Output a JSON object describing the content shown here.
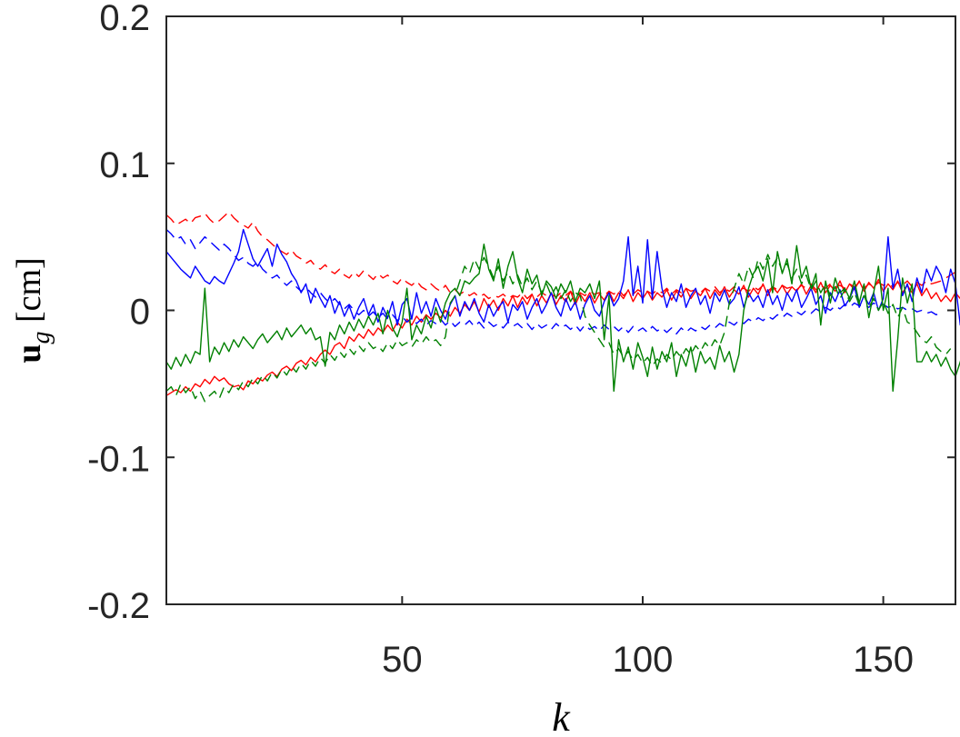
{
  "chart_data": {
    "type": "line",
    "xlabel": "k",
    "ylabel": "u_g [cm]",
    "xlim": [
      1,
      165
    ],
    "ylim": [
      -0.2,
      0.2
    ],
    "xticks": [
      50,
      100,
      150
    ],
    "yticks": [
      -0.2,
      -0.1,
      0,
      0.1,
      0.2
    ],
    "xtick_labels": [
      "50",
      "100",
      "150"
    ],
    "ytick_labels": [
      "-0.2",
      "-0.1",
      "0",
      "0.1",
      "0.2"
    ],
    "grid": false,
    "series": [
      {
        "color": "#ff0000",
        "dash": "solid",
        "values": [
          -0.058,
          -0.056,
          -0.054,
          -0.056,
          -0.052,
          -0.055,
          -0.05,
          -0.052,
          -0.047,
          -0.05,
          -0.045,
          -0.048,
          -0.046,
          -0.05,
          -0.052,
          -0.051,
          -0.054,
          -0.048,
          -0.05,
          -0.046,
          -0.048,
          -0.044,
          -0.042,
          -0.045,
          -0.04,
          -0.038,
          -0.041,
          -0.036,
          -0.034,
          -0.037,
          -0.032,
          -0.035,
          -0.03,
          -0.027,
          -0.03,
          -0.024,
          -0.022,
          -0.026,
          -0.018,
          -0.021,
          -0.016,
          -0.019,
          -0.013,
          -0.017,
          -0.012,
          -0.015,
          -0.01,
          -0.014,
          -0.008,
          -0.012,
          -0.006,
          -0.01,
          -0.004,
          -0.008,
          -0.003,
          -0.006,
          -0.002,
          -0.005,
          0.0,
          -0.004,
          0.002,
          -0.002,
          0.004,
          0.0,
          0.006,
          -0.001,
          0.008,
          0.002,
          0.007,
          0.0,
          0.008,
          0.003,
          0.01,
          0.002,
          0.009,
          0.004,
          0.011,
          0.003,
          0.01,
          0.005,
          0.012,
          0.004,
          0.01,
          0.006,
          0.013,
          0.004,
          0.011,
          0.006,
          0.012,
          0.005,
          0.011,
          0.007,
          0.013,
          0.006,
          0.012,
          0.008,
          0.014,
          0.006,
          0.012,
          0.008,
          0.013,
          0.007,
          0.012,
          0.009,
          0.014,
          0.007,
          0.013,
          0.009,
          0.015,
          0.008,
          0.013,
          0.01,
          0.015,
          0.008,
          0.014,
          0.01,
          0.016,
          0.009,
          0.014,
          0.011,
          0.017,
          0.009,
          0.015,
          0.011,
          0.018,
          0.01,
          0.016,
          0.012,
          0.017,
          0.011,
          0.016,
          0.013,
          0.018,
          0.011,
          0.017,
          0.012,
          0.019,
          0.012,
          0.017,
          0.013,
          0.02,
          0.012,
          0.018,
          0.014,
          0.02,
          0.013,
          0.019,
          0.015,
          0.021,
          0.013,
          0.018,
          0.014,
          0.02,
          0.012,
          0.017,
          0.012,
          0.018,
          0.01,
          0.015,
          0.008,
          0.012,
          0.006,
          0.01,
          0.006,
          0.012,
          0.008,
          0.014,
          0.025,
          0.022
        ]
      },
      {
        "color": "#ff0000",
        "dash": "dashed",
        "values": [
          0.065,
          0.062,
          0.058,
          0.06,
          0.062,
          0.059,
          0.063,
          0.064,
          0.066,
          0.062,
          0.059,
          0.061,
          0.064,
          0.067,
          0.063,
          0.06,
          0.058,
          0.056,
          0.06,
          0.054,
          0.05,
          0.048,
          0.045,
          0.042,
          0.04,
          0.038,
          0.041,
          0.037,
          0.035,
          0.032,
          0.034,
          0.03,
          0.028,
          0.031,
          0.027,
          0.025,
          0.028,
          0.024,
          0.022,
          0.026,
          0.023,
          0.027,
          0.024,
          0.021,
          0.025,
          0.022,
          0.024,
          0.02,
          0.018,
          0.022,
          0.019,
          0.017,
          0.02,
          0.016,
          0.014,
          0.018,
          0.015,
          0.013,
          0.017,
          0.012,
          0.014,
          0.011,
          0.013,
          0.01,
          0.012,
          0.009,
          0.011,
          0.008,
          0.01,
          0.009,
          0.011,
          0.008,
          0.01,
          0.009,
          0.012,
          0.008,
          0.011,
          0.009,
          0.012,
          0.01,
          0.011,
          0.009,
          0.012,
          0.01,
          0.013,
          0.009,
          0.012,
          0.01,
          0.013,
          0.011,
          0.012,
          0.01,
          0.013,
          0.011,
          0.014,
          0.01,
          0.013,
          0.011,
          0.014,
          0.012,
          0.013,
          0.011,
          0.014,
          0.012,
          0.015,
          0.011,
          0.014,
          0.012,
          0.015,
          0.013,
          0.014,
          0.012,
          0.015,
          0.013,
          0.016,
          0.012,
          0.015,
          0.013,
          0.016,
          0.014,
          0.015,
          0.013,
          0.016,
          0.014,
          0.017,
          0.013,
          0.016,
          0.014,
          0.017,
          0.015,
          0.016,
          0.014,
          0.017,
          0.015,
          0.018,
          0.014,
          0.017,
          0.015,
          0.018,
          0.016,
          0.017,
          0.015,
          0.018,
          0.016,
          0.019,
          0.015,
          0.018,
          0.016,
          0.019,
          0.017,
          0.018,
          0.016,
          0.019,
          0.017,
          0.02,
          0.016,
          0.019,
          0.017,
          0.02,
          0.018,
          0.019,
          0.02,
          0.022,
          0.024,
          0.026
        ]
      },
      {
        "color": "#0000ff",
        "dash": "solid",
        "values": [
          0.04,
          0.036,
          0.032,
          0.028,
          0.025,
          0.022,
          0.03,
          0.025,
          0.02,
          0.018,
          0.023,
          0.02,
          0.018,
          0.025,
          0.032,
          0.04,
          0.055,
          0.045,
          0.035,
          0.03,
          0.036,
          0.042,
          0.03,
          0.045,
          0.038,
          0.033,
          0.025,
          0.02,
          0.012,
          0.018,
          0.005,
          0.015,
          0.008,
          0.002,
          0.01,
          -0.002,
          0.006,
          -0.004,
          0.003,
          -0.006,
          0.002,
          0.008,
          -0.003,
          0.004,
          -0.008,
          0.002,
          -0.005,
          0.006,
          -0.01,
          0.004,
          0.008,
          -0.006,
          0.012,
          -0.002,
          0.006,
          -0.004,
          0.008,
          0.0,
          -0.006,
          0.004,
          0.01,
          -0.004,
          0.006,
          0.0,
          0.008,
          -0.002,
          -0.008,
          0.004,
          -0.004,
          0.002,
          0.006,
          -0.008,
          0.004,
          0.0,
          0.006,
          -0.006,
          0.002,
          0.008,
          -0.002,
          0.004,
          0.012,
          0.002,
          -0.004,
          0.008,
          0.0,
          0.006,
          -0.006,
          0.004,
          0.01,
          0.0,
          -0.004,
          0.006,
          0.012,
          0.003,
          0.008,
          0.02,
          0.05,
          0.01,
          0.03,
          0.005,
          0.048,
          0.008,
          0.04,
          0.015,
          0.002,
          0.012,
          0.006,
          0.018,
          0.002,
          0.01,
          0.015,
          0.004,
          0.01,
          -0.002,
          0.012,
          0.006,
          0.014,
          0.004,
          0.008,
          0.016,
          0.002,
          0.012,
          0.006,
          0.01,
          0.002,
          0.014,
          0.004,
          0.01,
          0.0,
          0.012,
          0.006,
          0.014,
          0.002,
          0.008,
          0.015,
          0.004,
          0.01,
          -0.002,
          0.012,
          0.006,
          0.014,
          0.003,
          0.008,
          0.016,
          0.002,
          0.01,
          0.004,
          0.012,
          0.0,
          0.008,
          0.05,
          0.015,
          0.028,
          0.01,
          0.018,
          0.006,
          0.022,
          0.012,
          0.028,
          0.02,
          0.03,
          0.024,
          0.012,
          0.028,
          0.018,
          -0.01,
          -0.012
        ]
      },
      {
        "color": "#0000ff",
        "dash": "dashed",
        "values": [
          0.055,
          0.052,
          0.048,
          0.05,
          0.045,
          0.048,
          0.042,
          0.046,
          0.05,
          0.047,
          0.044,
          0.041,
          0.045,
          0.042,
          0.038,
          0.034,
          0.036,
          0.032,
          0.03,
          0.033,
          0.028,
          0.025,
          0.022,
          0.024,
          0.02,
          0.017,
          0.02,
          0.016,
          0.013,
          0.016,
          0.012,
          0.009,
          0.012,
          0.008,
          0.005,
          0.008,
          0.004,
          0.001,
          0.004,
          0.0,
          -0.003,
          0.0,
          -0.004,
          -0.001,
          -0.005,
          -0.002,
          -0.006,
          -0.003,
          -0.007,
          -0.004,
          -0.008,
          -0.005,
          -0.009,
          -0.006,
          -0.01,
          -0.007,
          -0.009,
          -0.006,
          -0.01,
          -0.007,
          -0.011,
          -0.008,
          -0.01,
          -0.007,
          -0.011,
          -0.008,
          -0.012,
          -0.008,
          -0.011,
          -0.009,
          -0.012,
          -0.008,
          -0.011,
          -0.009,
          -0.012,
          -0.009,
          -0.013,
          -0.009,
          -0.012,
          -0.01,
          -0.013,
          -0.009,
          -0.012,
          -0.01,
          -0.013,
          -0.01,
          -0.014,
          -0.01,
          -0.013,
          -0.011,
          -0.014,
          -0.01,
          -0.013,
          -0.011,
          -0.014,
          -0.011,
          -0.015,
          -0.011,
          -0.014,
          -0.012,
          -0.015,
          -0.011,
          -0.014,
          -0.012,
          -0.015,
          -0.012,
          -0.016,
          -0.012,
          -0.015,
          -0.012,
          -0.014,
          -0.011,
          -0.013,
          -0.01,
          -0.012,
          -0.009,
          -0.011,
          -0.008,
          -0.01,
          -0.007,
          -0.009,
          -0.006,
          -0.008,
          -0.005,
          -0.007,
          -0.004,
          -0.006,
          -0.003,
          -0.005,
          -0.002,
          -0.004,
          -0.001,
          -0.003,
          0.0,
          -0.002,
          0.001,
          -0.001,
          0.002,
          0.0,
          0.003,
          0.001,
          0.004,
          0.002,
          0.005,
          0.003,
          0.004,
          0.002,
          0.005,
          0.003,
          0.004,
          0.002,
          0.003,
          0.001,
          0.002,
          0.0,
          0.001,
          -0.001,
          0.0,
          -0.002,
          -0.001,
          -0.003,
          -0.002
        ]
      },
      {
        "color": "#008000",
        "dash": "solid",
        "values": [
          -0.035,
          -0.04,
          -0.032,
          -0.038,
          -0.03,
          -0.036,
          -0.028,
          -0.03,
          0.015,
          -0.035,
          -0.025,
          -0.03,
          -0.022,
          -0.028,
          -0.02,
          -0.025,
          -0.018,
          -0.022,
          -0.026,
          -0.02,
          -0.016,
          -0.022,
          -0.018,
          -0.014,
          -0.02,
          -0.012,
          -0.018,
          -0.014,
          -0.01,
          -0.016,
          -0.012,
          -0.02,
          -0.018,
          -0.038,
          -0.015,
          -0.02,
          -0.01,
          -0.016,
          -0.008,
          -0.014,
          -0.006,
          -0.012,
          -0.004,
          -0.01,
          -0.002,
          -0.016,
          0.0,
          -0.012,
          -0.018,
          -0.008,
          0.015,
          -0.02,
          -0.01,
          -0.016,
          -0.004,
          -0.012,
          0.002,
          -0.008,
          0.005,
          0.012,
          0.015,
          0.01,
          0.02,
          0.018,
          0.022,
          0.025,
          0.045,
          0.028,
          0.02,
          0.035,
          0.015,
          0.03,
          0.04,
          0.022,
          0.012,
          0.028,
          0.018,
          0.024,
          0.01,
          0.02,
          0.016,
          0.008,
          0.018,
          0.012,
          0.02,
          0.006,
          0.015,
          0.012,
          0.018,
          0.008,
          0.02,
          -0.02,
          0.01,
          -0.055,
          -0.02,
          -0.035,
          -0.025,
          -0.04,
          -0.022,
          -0.032,
          -0.045,
          -0.025,
          -0.04,
          -0.028,
          -0.035,
          -0.022,
          -0.045,
          -0.03,
          -0.038,
          -0.025,
          -0.042,
          -0.028,
          -0.036,
          -0.032,
          -0.04,
          -0.024,
          -0.035,
          -0.028,
          -0.042,
          -0.03,
          0.0,
          0.015,
          0.025,
          0.03,
          0.02,
          0.035,
          0.012,
          0.04,
          0.025,
          0.035,
          0.018,
          0.044,
          0.022,
          0.03,
          0.015,
          0.025,
          -0.01,
          0.02,
          0.005,
          0.022,
          0.012,
          0.015,
          0.008,
          0.02,
          0.005,
          0.018,
          -0.005,
          0.012,
          0.03,
          0.0,
          0.015,
          -0.055,
          -0.02,
          0.022,
          0.005,
          0.018,
          -0.035,
          -0.035,
          -0.028,
          -0.035,
          -0.03,
          -0.038,
          -0.032,
          -0.04,
          -0.045,
          -0.035,
          -0.022
        ]
      },
      {
        "color": "#008000",
        "dash": "dashed",
        "values": [
          -0.055,
          -0.052,
          -0.058,
          -0.05,
          -0.056,
          -0.052,
          -0.06,
          -0.055,
          -0.062,
          -0.058,
          -0.055,
          -0.06,
          -0.052,
          -0.056,
          -0.05,
          -0.054,
          -0.048,
          -0.052,
          -0.046,
          -0.05,
          -0.044,
          -0.048,
          -0.042,
          -0.046,
          -0.04,
          -0.044,
          -0.038,
          -0.042,
          -0.036,
          -0.04,
          -0.034,
          -0.038,
          -0.032,
          -0.036,
          -0.03,
          -0.034,
          -0.028,
          -0.032,
          -0.026,
          -0.03,
          -0.024,
          -0.028,
          -0.022,
          -0.026,
          -0.024,
          -0.028,
          -0.022,
          -0.026,
          -0.02,
          -0.024,
          -0.022,
          -0.025,
          -0.02,
          -0.023,
          -0.018,
          -0.022,
          -0.02,
          -0.024,
          -0.018,
          0.005,
          0.01,
          0.02,
          0.03,
          0.025,
          0.035,
          0.028,
          0.036,
          0.03,
          0.022,
          0.03,
          0.02,
          0.026,
          0.018,
          0.024,
          0.016,
          0.022,
          0.014,
          0.02,
          0.012,
          0.018,
          0.01,
          0.016,
          0.008,
          0.014,
          0.006,
          0.012,
          0.01,
          -0.004,
          -0.01,
          -0.015,
          -0.02,
          -0.025,
          -0.022,
          -0.03,
          -0.026,
          -0.032,
          -0.028,
          -0.034,
          -0.03,
          -0.036,
          -0.032,
          -0.038,
          -0.033,
          -0.036,
          -0.03,
          -0.034,
          -0.028,
          -0.032,
          -0.026,
          -0.03,
          -0.024,
          -0.028,
          -0.022,
          -0.026,
          -0.02,
          -0.024,
          -0.015,
          0.005,
          0.015,
          0.025,
          0.018,
          0.03,
          0.022,
          0.035,
          0.028,
          0.038,
          0.03,
          0.036,
          0.026,
          0.032,
          0.022,
          0.028,
          0.018,
          0.024,
          0.014,
          0.02,
          0.012,
          0.018,
          0.01,
          0.016,
          0.008,
          0.014,
          0.006,
          0.012,
          0.004,
          0.01,
          0.002,
          0.008,
          0.0,
          0.006,
          -0.002,
          0.004,
          -0.005,
          0.002,
          -0.008,
          -0.01,
          -0.015,
          -0.02,
          -0.022,
          -0.018,
          -0.025,
          -0.028,
          -0.03,
          -0.026
        ]
      }
    ]
  }
}
